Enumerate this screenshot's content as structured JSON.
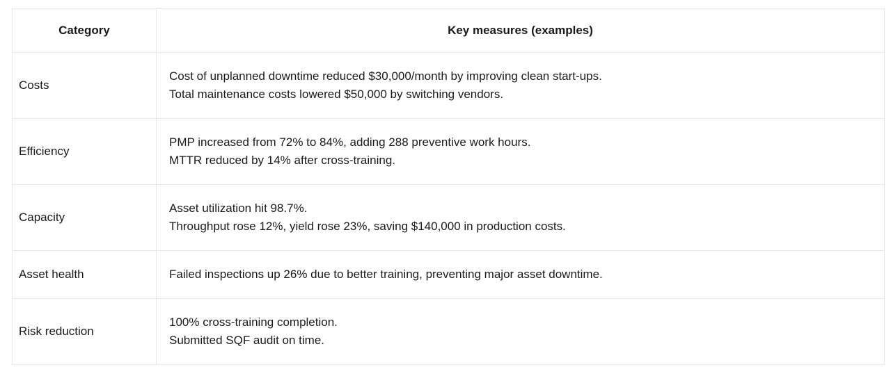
{
  "colors": {
    "background": "#ffffff",
    "border": "#e7e7e7",
    "text": "#1a1a1a"
  },
  "table": {
    "headers": {
      "category": "Category",
      "measures": "Key measures (examples)"
    },
    "rows": [
      {
        "category": "Costs",
        "measures": [
          "Cost of unplanned downtime reduced $30,000/month by improving clean start-ups.",
          "Total maintenance costs lowered $50,000 by switching vendors."
        ]
      },
      {
        "category": "Efficiency",
        "measures": [
          "PMP increased from 72% to 84%, adding 288 preventive work hours.",
          "MTTR reduced by 14% after cross-training."
        ]
      },
      {
        "category": "Capacity",
        "measures": [
          "Asset utilization hit 98.7%.",
          "Throughput rose 12%, yield rose 23%, saving $140,000 in production costs."
        ]
      },
      {
        "category": "Asset health",
        "measures": [
          "Failed inspections up 26% due to better training, preventing major asset downtime."
        ]
      },
      {
        "category": "Risk reduction",
        "measures": [
          "100% cross-training completion.",
          "Submitted SQF audit on time."
        ]
      }
    ]
  }
}
